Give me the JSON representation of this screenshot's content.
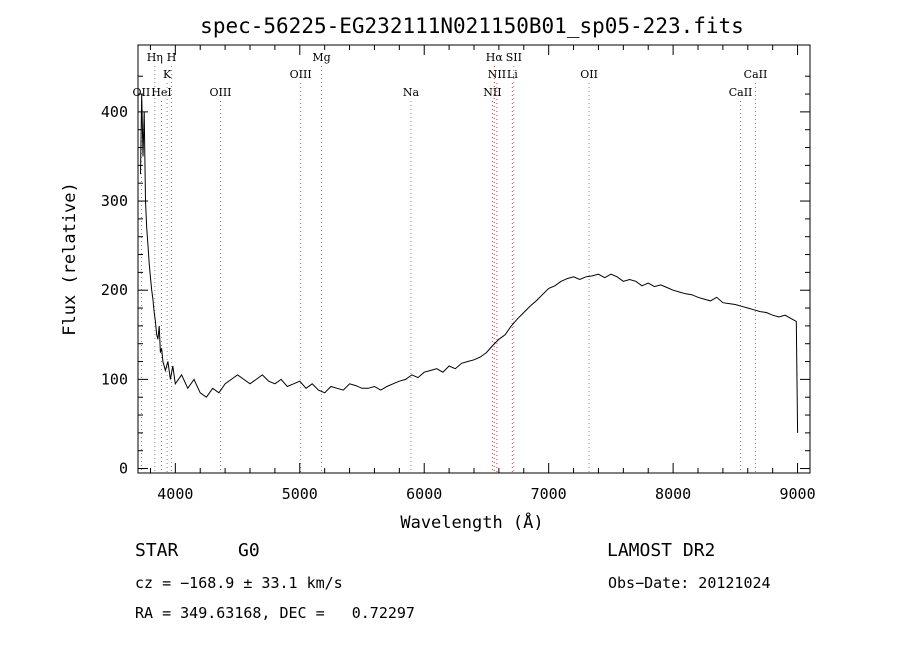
{
  "chart_data": {
    "type": "line",
    "title": "spec-56225-EG232111N021150B01_sp05-223.fits",
    "xlabel": "Wavelength (Å)",
    "ylabel": "Flux (relative)",
    "xlim": [
      3700,
      9100
    ],
    "ylim": [
      -5,
      475
    ],
    "x_ticks": [
      4000,
      5000,
      6000,
      7000,
      8000,
      9000
    ],
    "y_ticks": [
      0,
      100,
      200,
      300,
      400
    ],
    "grid": false,
    "spectrum_series": {
      "name": "",
      "color": "#000000",
      "x": [
        3720,
        3730,
        3740,
        3750,
        3760,
        3770,
        3780,
        3790,
        3800,
        3810,
        3820,
        3830,
        3840,
        3850,
        3860,
        3870,
        3880,
        3890,
        3900,
        3920,
        3940,
        3960,
        3980,
        4000,
        4050,
        4100,
        4150,
        4200,
        4250,
        4300,
        4350,
        4400,
        4450,
        4500,
        4550,
        4600,
        4650,
        4700,
        4750,
        4800,
        4850,
        4900,
        4950,
        5000,
        5050,
        5100,
        5150,
        5200,
        5250,
        5300,
        5350,
        5400,
        5450,
        5500,
        5550,
        5600,
        5650,
        5700,
        5750,
        5800,
        5850,
        5900,
        5950,
        6000,
        6050,
        6100,
        6150,
        6200,
        6250,
        6300,
        6350,
        6400,
        6450,
        6500,
        6550,
        6600,
        6650,
        6700,
        6750,
        6800,
        6850,
        6900,
        6950,
        7000,
        7050,
        7100,
        7150,
        7200,
        7250,
        7300,
        7350,
        7400,
        7450,
        7500,
        7550,
        7600,
        7650,
        7700,
        7750,
        7800,
        7850,
        7900,
        7950,
        8000,
        8050,
        8100,
        8150,
        8200,
        8250,
        8300,
        8350,
        8400,
        8450,
        8500,
        8550,
        8600,
        8650,
        8700,
        8750,
        8800,
        8850,
        8900,
        8950,
        8990,
        9000
      ],
      "y": [
        330,
        420,
        350,
        400,
        300,
        270,
        250,
        230,
        215,
        200,
        190,
        175,
        165,
        150,
        145,
        160,
        130,
        135,
        120,
        110,
        120,
        100,
        115,
        95,
        105,
        90,
        100,
        85,
        80,
        90,
        85,
        95,
        100,
        105,
        100,
        95,
        100,
        105,
        98,
        95,
        100,
        92,
        95,
        98,
        90,
        95,
        88,
        85,
        92,
        90,
        88,
        95,
        93,
        90,
        90,
        92,
        88,
        92,
        95,
        98,
        100,
        105,
        102,
        108,
        110,
        112,
        108,
        115,
        112,
        118,
        120,
        122,
        125,
        130,
        138,
        145,
        150,
        160,
        168,
        175,
        182,
        188,
        195,
        202,
        205,
        210,
        213,
        215,
        212,
        215,
        216,
        218,
        214,
        218,
        215,
        210,
        212,
        210,
        205,
        208,
        204,
        206,
        203,
        200,
        198,
        196,
        195,
        192,
        190,
        188,
        192,
        186,
        185,
        184,
        182,
        180,
        178,
        176,
        175,
        172,
        170,
        172,
        168,
        165,
        40
      ]
    },
    "emission_lines": [
      {
        "label": "Hη",
        "x": 3835,
        "row": 0
      },
      {
        "label": "H",
        "x": 3970,
        "row": 0
      },
      {
        "label": "K",
        "x": 3934,
        "row": 1
      },
      {
        "label": "OII",
        "x": 3727,
        "row": 2
      },
      {
        "label": "HeI",
        "x": 3889,
        "row": 2
      },
      {
        "label": "OIII",
        "x": 4363,
        "row": 2
      },
      {
        "label": "OIII",
        "x": 5007,
        "row": 1
      },
      {
        "label": "Mg",
        "x": 5175,
        "row": 0
      },
      {
        "label": "Na",
        "x": 5893,
        "row": 2
      },
      {
        "label": "Hα",
        "x": 6563,
        "row": 0
      },
      {
        "label": "NII",
        "x": 6584,
        "row": 1
      },
      {
        "label": "NII",
        "x": 6548,
        "row": 2
      },
      {
        "label": "Li",
        "x": 6708,
        "row": 1
      },
      {
        "label": "OII",
        "x": 7325,
        "row": 1
      },
      {
        "label": "SII",
        "x": 6720,
        "row": 0
      },
      {
        "label": "CaII",
        "x": 8662,
        "row": 1
      },
      {
        "label": "CaII",
        "x": 8542,
        "row": 2
      }
    ]
  },
  "info": {
    "class_label": "STAR",
    "subclass": "G0",
    "survey": "LAMOST DR2",
    "cz": "cz = −168.9 ± 33.1 km/s",
    "obs_date": "Obs−Date: 20121024",
    "coords": "RA = 349.63168, DEC =   0.72297"
  }
}
